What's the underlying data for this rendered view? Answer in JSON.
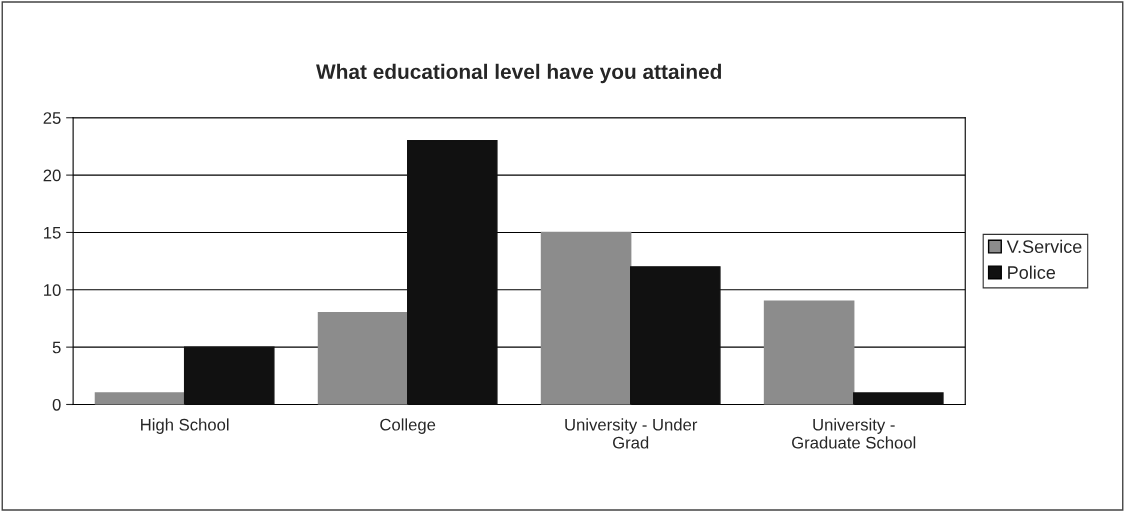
{
  "chart_data": {
    "type": "bar",
    "title": "What educational level have you attained",
    "categories": [
      "High School",
      "College",
      "University - Under Grad",
      "University - Graduate School"
    ],
    "series": [
      {
        "name": "V.Service",
        "color": "#8c8c8c",
        "values": [
          1,
          8,
          15,
          9
        ]
      },
      {
        "name": "Police",
        "color": "#111111",
        "values": [
          5,
          23,
          12,
          1
        ]
      }
    ],
    "ylim": [
      0,
      25
    ],
    "yticks": [
      0,
      5,
      10,
      15,
      20,
      25
    ],
    "grid": "y",
    "legend": "right"
  }
}
